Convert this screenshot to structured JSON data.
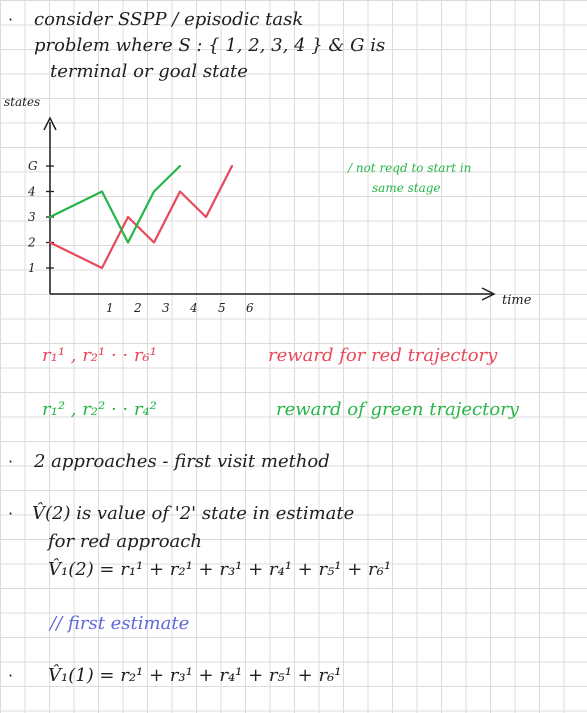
{
  "intro": {
    "bullet": "·",
    "line1": "consider  SSPP / episodic task",
    "line2": "problem where  S : { 1, 2, 3, 4 }   &  G is",
    "line3": "terminal   or  goal  state"
  },
  "chart_data": {
    "type": "line",
    "ylabel": "states",
    "xlabel": "time",
    "x_ticks": [
      "1",
      "2",
      "3",
      "4",
      "5",
      "6"
    ],
    "y_ticks": [
      "1",
      "2",
      "3",
      "4",
      "G"
    ],
    "series": [
      {
        "color": "#e8485a",
        "points": [
          [
            0,
            2
          ],
          [
            1,
            1
          ],
          [
            1.5,
            3
          ],
          [
            2,
            2
          ],
          [
            2.5,
            4
          ],
          [
            3,
            3
          ],
          [
            3.5,
            5
          ]
        ]
      },
      {
        "color": "#27b548",
        "points": [
          [
            0,
            3
          ],
          [
            1,
            4
          ],
          [
            1.5,
            2
          ],
          [
            2,
            4
          ],
          [
            2.5,
            5
          ]
        ]
      }
    ],
    "annotation": {
      "line1": "/ not reqd to start in",
      "line2": "same stage"
    }
  },
  "rewards": {
    "red_symbols": "r₁¹ , r₂¹  ·  ·   r₆¹",
    "red_label": "reward for red trajectory",
    "green_symbols": "r₁² , r₂²  ·  ·  r₄²",
    "green_label": "reward of green trajectory"
  },
  "approaches": {
    "bullet": "·",
    "text": "2 approaches - first visit method"
  },
  "value": {
    "bullet": "·",
    "line1": "V̂(2)  is value of '2' state  in estimate",
    "line2": "for red approach",
    "line3": "V̂₁(2) = r₁¹ + r₂¹ + r₃¹ + r₄¹ + r₅¹ + r₆¹"
  },
  "note": "// first estimate",
  "estimate": {
    "bullet": "·",
    "text": "V̂₁(1) = r₂¹ + r₃¹ + r₄¹ + r₅¹ + r₆¹"
  }
}
